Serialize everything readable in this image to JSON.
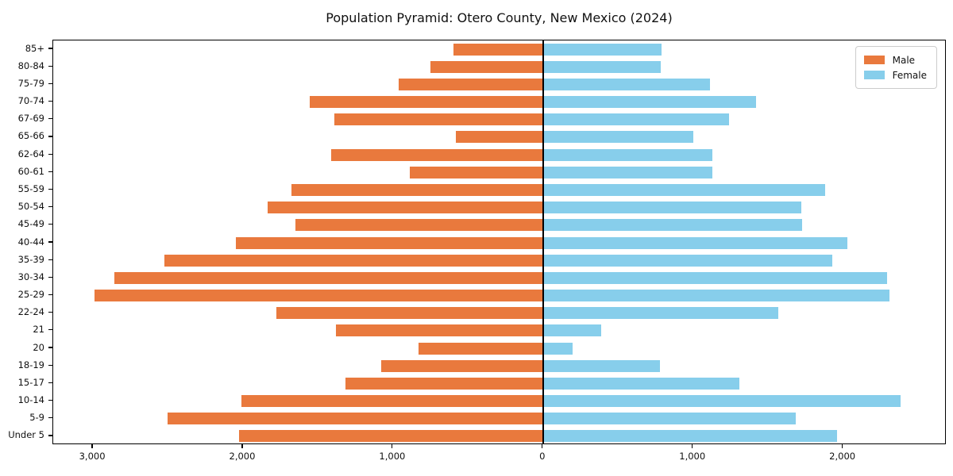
{
  "title": "Population Pyramid: Otero County, New Mexico (2024)",
  "legend": {
    "male_label": "Male",
    "female_label": "Female",
    "position": "upper right"
  },
  "colors": {
    "male": "#E9793D",
    "female": "#87CEEB",
    "axis": "#000000",
    "background": "#ffffff"
  },
  "chart_data": {
    "type": "bar",
    "subtype": "population-pyramid",
    "title": "Population Pyramid: Otero County, New Mexico (2024)",
    "categories": [
      "85+",
      "80-84",
      "75-79",
      "70-74",
      "67-69",
      "65-66",
      "62-64",
      "60-61",
      "55-59",
      "50-54",
      "45-49",
      "40-44",
      "35-39",
      "30-34",
      "25-29",
      "22-24",
      "21",
      "20",
      "18-19",
      "15-17",
      "10-14",
      "5-9",
      "Under 5"
    ],
    "series": [
      {
        "name": "Male",
        "side": "left",
        "color": "#E9793D",
        "values": [
          595,
          750,
          960,
          1555,
          1390,
          580,
          1410,
          890,
          1675,
          1835,
          1650,
          2045,
          2525,
          2860,
          2990,
          1775,
          1380,
          830,
          1080,
          1315,
          2010,
          2505,
          2025
        ]
      },
      {
        "name": "Female",
        "side": "right",
        "color": "#87CEEB",
        "values": [
          790,
          785,
          1110,
          1420,
          1240,
          1000,
          1130,
          1130,
          1880,
          1720,
          1725,
          2030,
          1930,
          2295,
          2310,
          1570,
          390,
          195,
          780,
          1310,
          2385,
          1685,
          1960
        ]
      }
    ],
    "x_axis": {
      "min": -3265,
      "max": 2690,
      "tick_values": [
        -3000,
        -2000,
        -1000,
        0,
        1000,
        2000
      ],
      "tick_labels": [
        "3,000",
        "2,000",
        "1,000",
        "0",
        "1,000",
        "2,000"
      ]
    },
    "grid": false,
    "legend_position": "upper right",
    "zero_line": true
  }
}
